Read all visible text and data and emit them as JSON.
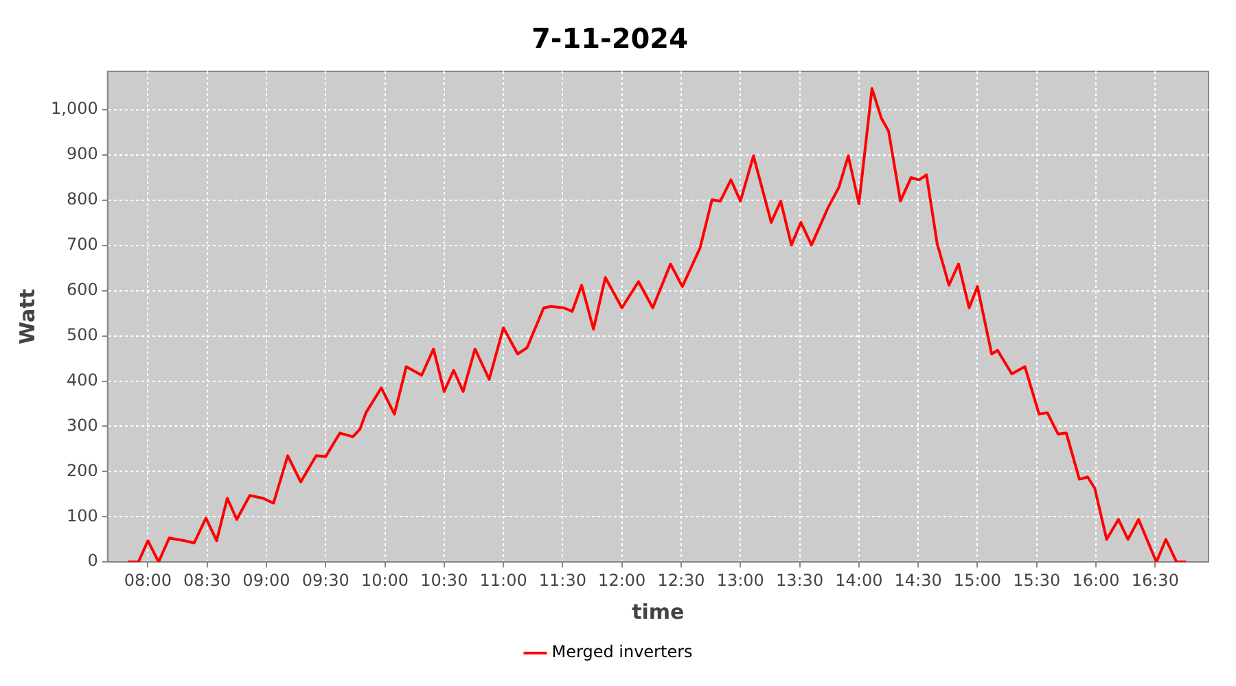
{
  "chart_data": {
    "type": "line",
    "title": "7-11-2024",
    "xlabel": "time",
    "ylabel": "Watt",
    "x": [
      7.83,
      7.92,
      8.0,
      8.09,
      8.18,
      8.31,
      8.39,
      8.49,
      8.58,
      8.67,
      8.75,
      8.86,
      8.97,
      9.06,
      9.18,
      9.29,
      9.42,
      9.5,
      9.62,
      9.73,
      9.79,
      9.84,
      9.97,
      10.08,
      10.18,
      10.31,
      10.41,
      10.5,
      10.58,
      10.66,
      10.76,
      10.88,
      11.0,
      11.12,
      11.2,
      11.34,
      11.4,
      11.51,
      11.58,
      11.66,
      11.76,
      11.86,
      12.0,
      12.14,
      12.26,
      12.41,
      12.51,
      12.66,
      12.76,
      12.83,
      12.92,
      13.0,
      13.11,
      13.26,
      13.34,
      13.43,
      13.51,
      13.6,
      13.74,
      13.83,
      13.91,
      14.0,
      14.11,
      14.19,
      14.25,
      14.35,
      14.44,
      14.51,
      14.57,
      14.66,
      14.76,
      14.84,
      14.93,
      15.0,
      15.12,
      15.17,
      15.29,
      15.4,
      15.52,
      15.59,
      15.68,
      15.75,
      15.86,
      15.93,
      15.99,
      16.09,
      16.19,
      16.27,
      16.36,
      16.51,
      16.59,
      16.68,
      16.76
    ],
    "series": [
      {
        "name": "Merged inverters",
        "color": "#ff0000",
        "values": [
          0,
          0,
          47,
          0,
          53,
          47,
          42,
          97,
          47,
          141,
          94,
          147,
          141,
          130,
          235,
          177,
          235,
          233,
          285,
          277,
          294,
          330,
          385,
          327,
          432,
          413,
          471,
          377,
          424,
          377,
          471,
          404,
          518,
          460,
          474,
          562,
          565,
          562,
          554,
          612,
          515,
          629,
          562,
          620,
          562,
          659,
          609,
          695,
          801,
          798,
          845,
          798,
          898,
          751,
          798,
          701,
          751,
          701,
          784,
          828,
          898,
          792,
          1047,
          981,
          953,
          798,
          850,
          845,
          856,
          704,
          612,
          659,
          562,
          609,
          460,
          468,
          416,
          432,
          327,
          330,
          283,
          285,
          183,
          188,
          163,
          50,
          94,
          50,
          94,
          0,
          50,
          0,
          0
        ]
      }
    ],
    "xlim": [
      7.66,
      16.95
    ],
    "xticks": [
      {
        "value": 8,
        "label": "08:00"
      },
      {
        "value": 8.5,
        "label": "08:30"
      },
      {
        "value": 9,
        "label": "09:00"
      },
      {
        "value": 9.5,
        "label": "09:30"
      },
      {
        "value": 10,
        "label": "10:00"
      },
      {
        "value": 10.5,
        "label": "10:30"
      },
      {
        "value": 11,
        "label": "11:00"
      },
      {
        "value": 11.5,
        "label": "11:30"
      },
      {
        "value": 12,
        "label": "12:00"
      },
      {
        "value": 12.5,
        "label": "12:30"
      },
      {
        "value": 13,
        "label": "13:00"
      },
      {
        "value": 13.5,
        "label": "13:30"
      },
      {
        "value": 14,
        "label": "14:00"
      },
      {
        "value": 14.5,
        "label": "14:30"
      },
      {
        "value": 15,
        "label": "15:00"
      },
      {
        "value": 15.5,
        "label": "15:30"
      },
      {
        "value": 16,
        "label": "16:00"
      },
      {
        "value": 16.5,
        "label": "16:30"
      }
    ],
    "ylim": [
      0,
      1085
    ],
    "yticks": [
      0,
      100,
      200,
      300,
      400,
      500,
      600,
      700,
      800,
      900,
      {
        "value": 1000,
        "label": "1,000"
      }
    ],
    "grid": true,
    "legend": "bottom",
    "marker": "none",
    "line_style": "solid"
  }
}
